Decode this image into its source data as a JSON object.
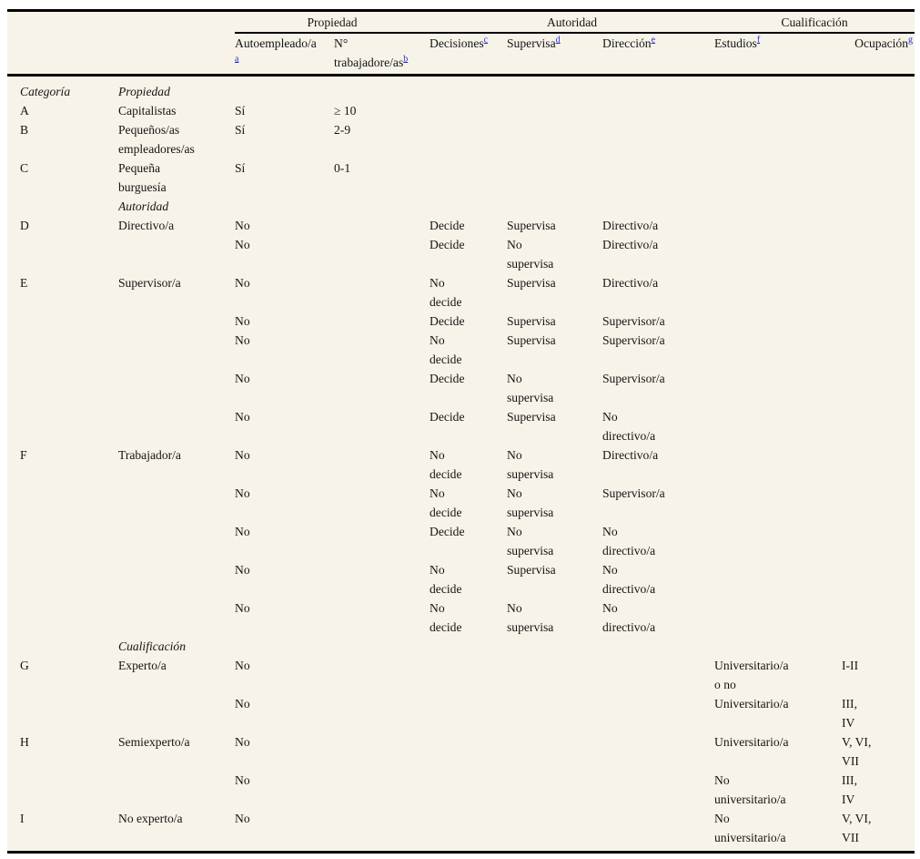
{
  "colors": {
    "page_background": "#ffffff",
    "table_background": "#f7f3e8",
    "rule": "#000000",
    "text": "#141414",
    "footnote_link": "#2a2ad2"
  },
  "table": {
    "group_headers": [
      {
        "name": "group-header-empty",
        "label": "",
        "span": 2,
        "underline": false
      },
      {
        "name": "group-header-propiedad",
        "label": "Propiedad",
        "span": 2,
        "underline": true
      },
      {
        "name": "group-header-autoridad",
        "label": "Autoridad",
        "span": 3,
        "underline": true
      },
      {
        "name": "group-header-cualificacion",
        "label": "Cualificación",
        "span": 2,
        "underline": true
      }
    ],
    "columns": [
      {
        "name": "column-header-categoria",
        "label": "",
        "sup": "",
        "align": "left"
      },
      {
        "name": "column-header-clase",
        "label": "",
        "sup": "",
        "align": "left"
      },
      {
        "name": "column-header-autoempleado",
        "label": "Autoempleado/a",
        "sup": "a",
        "sup_on_new_line": true,
        "align": "left"
      },
      {
        "name": "column-header-n-trabajadores",
        "label": "N°\ntrabajadore/as",
        "sup": "b",
        "align": "left"
      },
      {
        "name": "column-header-decisiones",
        "label": "Decisiones",
        "sup": "c",
        "align": "left"
      },
      {
        "name": "column-header-supervisa",
        "label": "Supervisa",
        "sup": "d",
        "align": "left"
      },
      {
        "name": "column-header-direccion",
        "label": "Dirección",
        "sup": "e",
        "align": "left"
      },
      {
        "name": "column-header-estudios",
        "label": "Estudios",
        "sup": "f",
        "align": "left"
      },
      {
        "name": "column-header-ocupacion",
        "label": "Ocupación",
        "sup": "g",
        "align": "right"
      }
    ],
    "rows": [
      {
        "section": true,
        "cells": [
          "Categoría",
          "Propiedad",
          "",
          "",
          "",
          "",
          "",
          "",
          ""
        ]
      },
      {
        "section": false,
        "cells": [
          "A",
          "Capitalistas",
          "Sí",
          "≥ 10",
          "",
          "",
          "",
          "",
          ""
        ]
      },
      {
        "section": false,
        "cells": [
          "B",
          "Pequeños/as\nempleadores/as",
          "Sí",
          "2-9",
          "",
          "",
          "",
          "",
          ""
        ]
      },
      {
        "section": false,
        "cells": [
          "C",
          "Pequeña\nburguesía",
          "Sí",
          "0-1",
          "",
          "",
          "",
          "",
          ""
        ]
      },
      {
        "section": true,
        "cells": [
          "",
          "Autoridad",
          "",
          "",
          "",
          "",
          "",
          "",
          ""
        ]
      },
      {
        "section": false,
        "cells": [
          "D",
          "Directivo/a",
          "No",
          "",
          "Decide",
          "Supervisa",
          "Directivo/a",
          "",
          ""
        ]
      },
      {
        "section": false,
        "cells": [
          "",
          "",
          "No",
          "",
          "Decide",
          "No\nsupervisa",
          "Directivo/a",
          "",
          ""
        ]
      },
      {
        "section": false,
        "cells": [
          "E",
          "Supervisor/a",
          "No",
          "",
          "No\ndecide",
          "Supervisa",
          "Directivo/a",
          "",
          ""
        ]
      },
      {
        "section": false,
        "cells": [
          "",
          "",
          "No",
          "",
          "Decide",
          "Supervisa",
          "Supervisor/a",
          "",
          ""
        ]
      },
      {
        "section": false,
        "cells": [
          "",
          "",
          "No",
          "",
          "No\ndecide",
          "Supervisa",
          "Supervisor/a",
          "",
          ""
        ]
      },
      {
        "section": false,
        "cells": [
          "",
          "",
          "No",
          "",
          "Decide",
          "No\nsupervisa",
          "Supervisor/a",
          "",
          ""
        ]
      },
      {
        "section": false,
        "cells": [
          "",
          "",
          "No",
          "",
          "Decide",
          "Supervisa",
          "No\ndirectivo/a",
          "",
          ""
        ]
      },
      {
        "section": false,
        "cells": [
          "F",
          "Trabajador/a",
          "No",
          "",
          "No\ndecide",
          "No\nsupervisa",
          "Directivo/a",
          "",
          ""
        ]
      },
      {
        "section": false,
        "cells": [
          "",
          "",
          "No",
          "",
          "No\ndecide",
          "No\nsupervisa",
          "Supervisor/a",
          "",
          ""
        ]
      },
      {
        "section": false,
        "cells": [
          "",
          "",
          "No",
          "",
          "Decide",
          "No\nsupervisa",
          "No\ndirectivo/a",
          "",
          ""
        ]
      },
      {
        "section": false,
        "cells": [
          "",
          "",
          "No",
          "",
          "No\ndecide",
          "Supervisa",
          "No\ndirectivo/a",
          "",
          ""
        ]
      },
      {
        "section": false,
        "cells": [
          "",
          "",
          "No",
          "",
          "No\ndecide",
          "No\nsupervisa",
          "No\ndirectivo/a",
          "",
          ""
        ]
      },
      {
        "section": true,
        "cells": [
          "",
          "Cualificación",
          "",
          "",
          "",
          "",
          "",
          "",
          ""
        ]
      },
      {
        "section": false,
        "cells": [
          "G",
          "Experto/a",
          "No",
          "",
          "",
          "",
          "",
          "Universitario/a\no no",
          "I-II"
        ]
      },
      {
        "section": false,
        "cells": [
          "",
          "",
          "No",
          "",
          "",
          "",
          "",
          "Universitario/a",
          "III,\nIV"
        ]
      },
      {
        "section": false,
        "cells": [
          "H",
          "Semiexperto/a",
          "No",
          "",
          "",
          "",
          "",
          "Universitario/a",
          "V, VI,\nVII"
        ]
      },
      {
        "section": false,
        "cells": [
          "",
          "",
          "No",
          "",
          "",
          "",
          "",
          "No\nuniversitario/a",
          "III,\nIV"
        ]
      },
      {
        "section": false,
        "cells": [
          "I",
          "No experto/a",
          "No",
          "",
          "",
          "",
          "",
          "No\nuniversitario/a",
          "V, VI,\nVII"
        ]
      }
    ]
  }
}
